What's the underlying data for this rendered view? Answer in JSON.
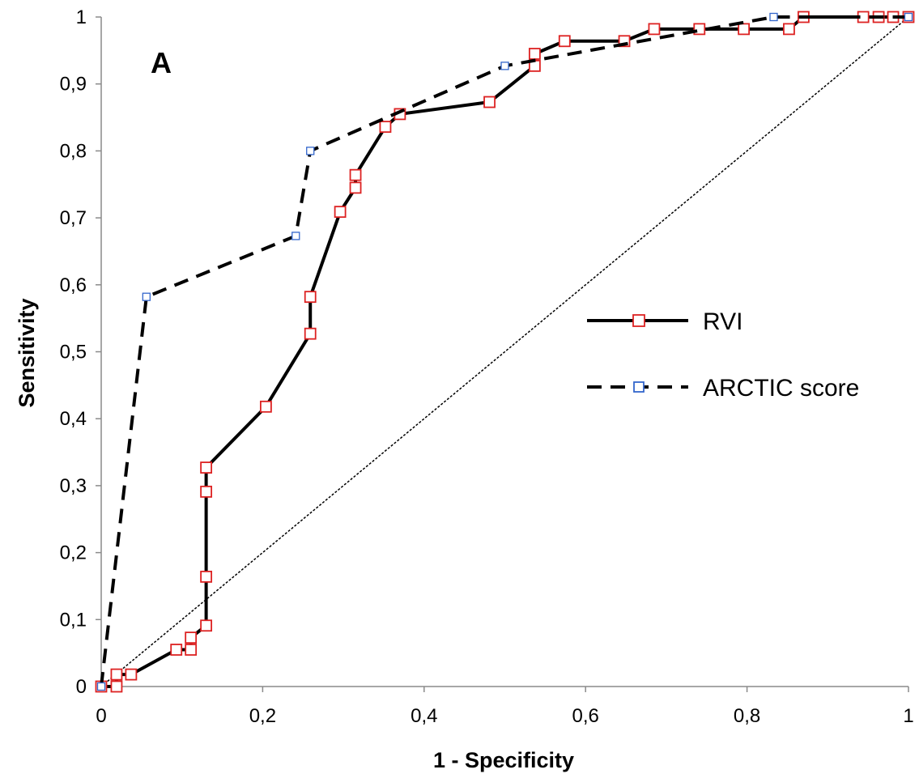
{
  "chart_data": {
    "type": "line",
    "panel_label": "A",
    "xlabel": "1 - Specificity",
    "ylabel": "Sensitivity",
    "xlim": [
      0,
      1
    ],
    "ylim": [
      0,
      1
    ],
    "x_ticks": [
      0,
      0.2,
      0.4,
      0.6,
      0.8,
      1
    ],
    "x_tick_labels": [
      "0",
      "0,2",
      "0,4",
      "0,6",
      "0,8",
      "1"
    ],
    "y_ticks": [
      0,
      0.1,
      0.2,
      0.3,
      0.4,
      0.5,
      0.6,
      0.7,
      0.8,
      0.9,
      1
    ],
    "y_tick_labels": [
      "0",
      "0,1",
      "0,2",
      "0,3",
      "0,4",
      "0,5",
      "0,6",
      "0,7",
      "0,8",
      "0,9",
      "1"
    ],
    "grid": false,
    "legend_position": "right",
    "reference_line": {
      "x": [
        0,
        1
      ],
      "y": [
        0,
        1
      ],
      "style": "dotted"
    },
    "series": [
      {
        "name": "RVI",
        "line_style": "solid",
        "marker_color": "#dd2222",
        "x": [
          0,
          0.019,
          0.019,
          0.037,
          0.093,
          0.111,
          0.111,
          0.13,
          0.13,
          0.13,
          0.13,
          0.204,
          0.259,
          0.259,
          0.296,
          0.315,
          0.315,
          0.352,
          0.37,
          0.481,
          0.537,
          0.537,
          0.574,
          0.648,
          0.685,
          0.741,
          0.796,
          0.852,
          0.87,
          0.944,
          0.963,
          0.981,
          1
        ],
        "y": [
          0,
          0,
          0.018,
          0.018,
          0.055,
          0.055,
          0.073,
          0.091,
          0.164,
          0.291,
          0.327,
          0.418,
          0.527,
          0.582,
          0.709,
          0.745,
          0.764,
          0.836,
          0.855,
          0.873,
          0.927,
          0.945,
          0.964,
          0.964,
          0.982,
          0.982,
          0.982,
          0.982,
          1,
          1,
          1,
          1,
          1
        ]
      },
      {
        "name": "ARCTIC score",
        "line_style": "dashed",
        "marker_color": "#3366cc",
        "x": [
          0,
          0.056,
          0.241,
          0.259,
          0.5,
          0.833,
          1
        ],
        "y": [
          0,
          0.582,
          0.673,
          0.8,
          0.927,
          1,
          1
        ]
      }
    ]
  }
}
